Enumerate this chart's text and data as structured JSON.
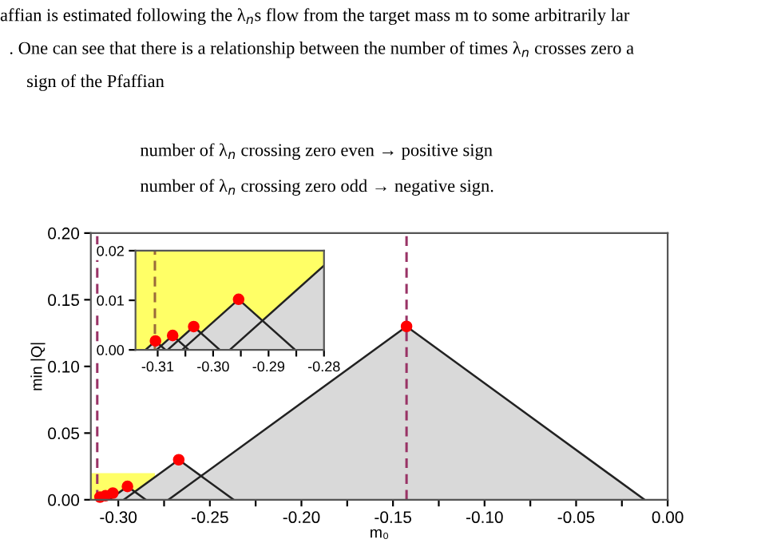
{
  "chart_data": [
    {
      "type": "area",
      "xlabel": "m₀",
      "ylabel": "min |Q|",
      "annotations": [
        "affian is estimated following the λ$_{n}$s flow from the target mass m to some arbitrarily lar",
        ". One can see that there is a relationship between the number of times λ$_{n}$ crosses zero a",
        "sign of the Pfaffian",
        "number of λ$_{n}$ crossing zero even → positive sign",
        "number of λ$_{n}$ crossing zero odd → negative sign."
      ],
      "xlim": [
        -0.315,
        0.0
      ],
      "ylim": [
        0.0,
        0.2
      ],
      "xticks": [
        {
          "value": -0.3,
          "label": "-0.30"
        },
        {
          "value": -0.275,
          "label": null
        },
        {
          "value": -0.25,
          "label": "-0.25"
        },
        {
          "value": -0.225,
          "label": null
        },
        {
          "value": -0.2,
          "label": "-0.20"
        },
        {
          "value": -0.175,
          "label": null
        },
        {
          "value": -0.15,
          "label": "-0.15"
        },
        {
          "value": -0.125,
          "label": null
        },
        {
          "value": -0.1,
          "label": "-0.10"
        },
        {
          "value": -0.075,
          "label": null
        },
        {
          "value": -0.05,
          "label": "-0.05"
        },
        {
          "value": -0.025,
          "label": null
        },
        {
          "value": 0.0,
          "label": "0.00"
        }
      ],
      "yticks": [
        {
          "value": 0.0,
          "label": "0.00"
        },
        {
          "value": 0.05,
          "label": "0.05"
        },
        {
          "value": 0.1,
          "label": "0.10"
        },
        {
          "value": 0.15,
          "label": "0.15"
        },
        {
          "value": 0.2,
          "label": "0.20"
        }
      ],
      "ref_lines": [
        {
          "axis": "x",
          "value": -0.3115,
          "color": "#993366",
          "line_style": "dashed"
        },
        {
          "axis": "x",
          "value": -0.1426,
          "color": "#993366",
          "line_style": "dashed"
        }
      ],
      "series": [
        {
          "color": "#ffff66",
          "x": [
            -0.315,
            -0.28
          ],
          "values": [
            0.02,
            0.02
          ]
        },
        {
          "color": "#d9d9d9",
          "line_style": "solid",
          "x": [
            -0.305,
            -0.295,
            -0.285
          ],
          "values": [
            0,
            0.01,
            0
          ]
        },
        {
          "color": "#d9d9d9",
          "line_style": "solid",
          "x": [
            -0.297,
            -0.267,
            -0.237
          ],
          "values": [
            0,
            0.03,
            0
          ]
        },
        {
          "color": "#d9d9d9",
          "line_style": "solid",
          "x": [
            -0.2726,
            -0.1426,
            -0.0126
          ],
          "values": [
            0,
            0.13,
            0
          ]
        },
        {
          "type": "scatter",
          "color": "#ff0000",
          "marker": "circle",
          "x": [
            -0.31,
            -0.307,
            -0.303,
            -0.295,
            -0.267,
            -0.1426
          ],
          "values": [
            0.002,
            0.003,
            0.005,
            0.01,
            0.03,
            0.13
          ]
        }
      ]
    },
    {
      "type": "area",
      "xlim": [
        -0.314,
        -0.28
      ],
      "ylim": [
        0.0,
        0.02
      ],
      "xticks": [
        {
          "value": -0.31,
          "label": "-0.31"
        },
        {
          "value": -0.305,
          "label": null
        },
        {
          "value": -0.3,
          "label": "-0.30"
        },
        {
          "value": -0.295,
          "label": null
        },
        {
          "value": -0.29,
          "label": "-0.29"
        },
        {
          "value": -0.285,
          "label": null
        },
        {
          "value": -0.28,
          "label": "-0.28"
        }
      ],
      "yticks": [
        {
          "value": 0.0,
          "label": "0.00"
        },
        {
          "value": 0.01,
          "label": "0.01"
        },
        {
          "value": 0.02,
          "label": "0.02"
        }
      ],
      "bands": [
        {
          "axis": "x",
          "from": -0.314,
          "to": -0.28,
          "color": "#ffff66"
        }
      ],
      "ref_lines": [
        {
          "axis": "x",
          "value": -0.3105,
          "color": "#9b6b3a",
          "line_style": "dashed"
        }
      ],
      "series": [
        {
          "color": "#d9d9d9",
          "line_style": "solid",
          "x": [
            -0.3122,
            -0.3104,
            -0.3086
          ],
          "values": [
            0,
            0.0018,
            0
          ]
        },
        {
          "color": "#d9d9d9",
          "line_style": "solid",
          "x": [
            -0.3102,
            -0.3073,
            -0.3044
          ],
          "values": [
            0,
            0.0029,
            0
          ]
        },
        {
          "color": "#d9d9d9",
          "line_style": "solid",
          "x": [
            -0.3082,
            -0.3035,
            -0.2988
          ],
          "values": [
            0,
            0.0047,
            0
          ]
        },
        {
          "color": "#d9d9d9",
          "line_style": "solid",
          "x": [
            -0.3056,
            -0.2954,
            -0.2852
          ],
          "values": [
            0,
            0.0102,
            0
          ]
        },
        {
          "color": "#d9d9d9",
          "line_style": "solid",
          "x": [
            -0.297,
            -0.28
          ],
          "values": [
            0,
            0.017
          ]
        },
        {
          "type": "scatter",
          "color": "#ff0000",
          "marker": "circle",
          "x": [
            -0.3104,
            -0.3073,
            -0.3035,
            -0.2954
          ],
          "values": [
            0.0018,
            0.0029,
            0.0047,
            0.0102
          ]
        }
      ]
    }
  ]
}
